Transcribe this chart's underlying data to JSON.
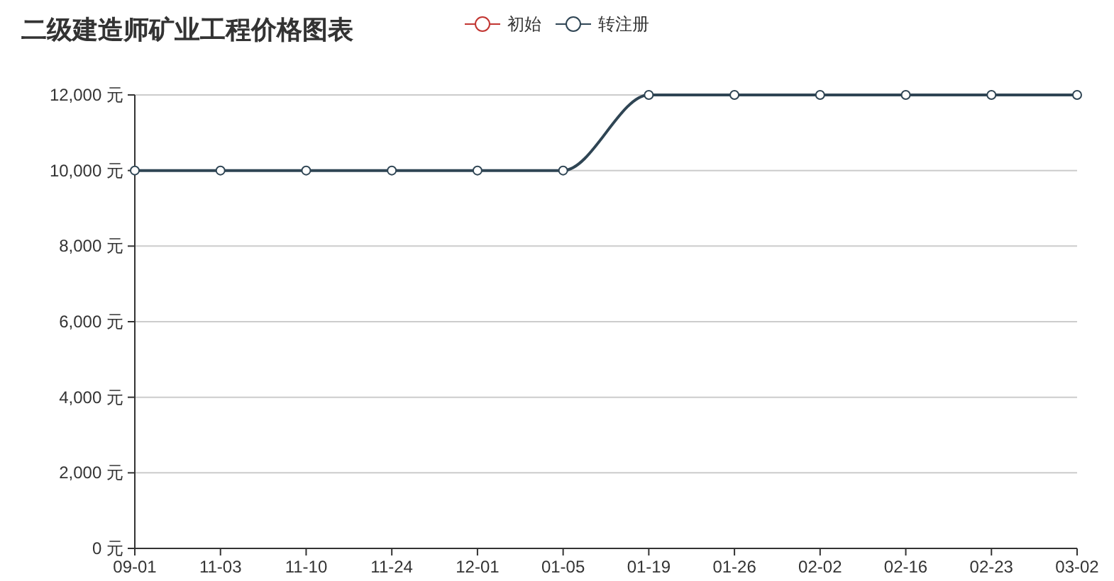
{
  "chart_data": {
    "type": "line",
    "title": "二级建造师矿业工程价格图表",
    "categories": [
      "09-01",
      "11-03",
      "11-10",
      "11-24",
      "12-01",
      "01-05",
      "01-19",
      "01-26",
      "02-02",
      "02-16",
      "02-23",
      "03-02"
    ],
    "series": [
      {
        "name": "初始",
        "color": "#c23531",
        "values": [
          null,
          null,
          null,
          null,
          null,
          null,
          null,
          null,
          null,
          null,
          null,
          null
        ]
      },
      {
        "name": "转注册",
        "color": "#2f4554",
        "values": [
          10000,
          10000,
          10000,
          10000,
          10000,
          10000,
          12000,
          12000,
          12000,
          12000,
          12000,
          12000
        ]
      }
    ],
    "ylim": [
      0,
      12000
    ],
    "yticks": [
      {
        "value": 0,
        "label": "0 元"
      },
      {
        "value": 2000,
        "label": "2,000 元"
      },
      {
        "value": 4000,
        "label": "4,000 元"
      },
      {
        "value": 6000,
        "label": "6,000 元"
      },
      {
        "value": 8000,
        "label": "8,000 元"
      },
      {
        "value": 10000,
        "label": "10,000 元"
      },
      {
        "value": 12000,
        "label": "12,000 元"
      }
    ],
    "grid": "y",
    "legend": "top",
    "marker": "circle",
    "line_style": "solid"
  }
}
